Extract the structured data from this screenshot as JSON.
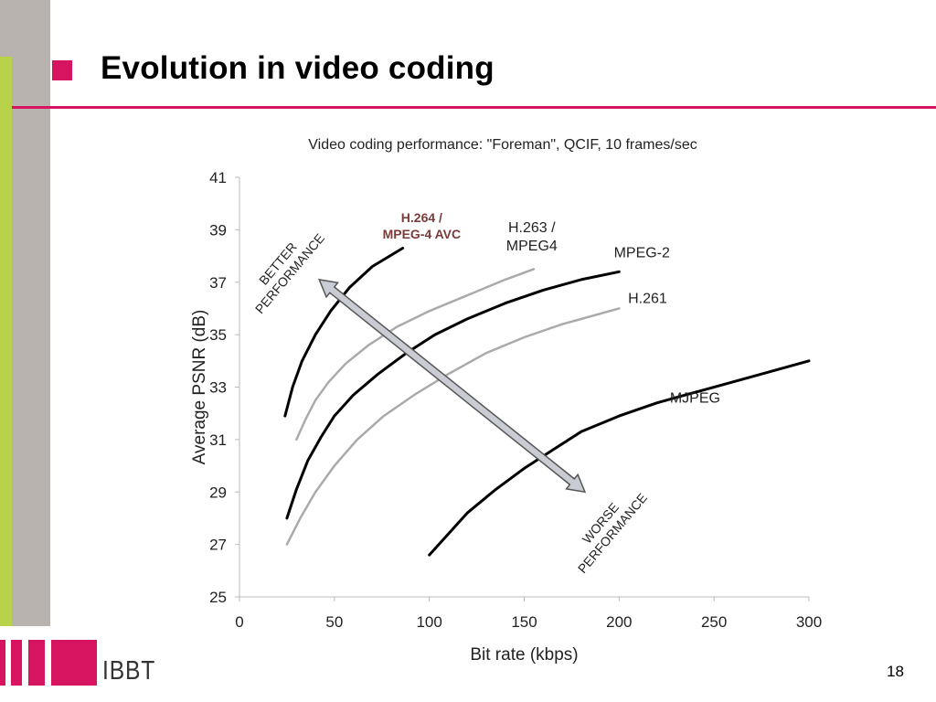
{
  "slide": {
    "title": "Evolution in video coding",
    "page_number": "18",
    "logo_text": "IBBT",
    "accent_color": "#d6145f",
    "sidebar_gray": "#b9b3b0",
    "sidebar_green": "#b8d34a"
  },
  "chart_data": {
    "type": "line",
    "title": "Video coding performance: \"Foreman\", QCIF, 10 frames/sec",
    "xlabel": "Bit rate (kbps)",
    "ylabel": "Average PSNR (dB)",
    "xlim": [
      0,
      300
    ],
    "ylim": [
      25,
      41
    ],
    "xticks": [
      0,
      50,
      100,
      150,
      200,
      250,
      300
    ],
    "yticks": [
      25,
      27,
      29,
      31,
      33,
      35,
      37,
      39,
      41
    ],
    "grid": false,
    "series": [
      {
        "name": "H.264 / MPEG-4 AVC",
        "label": [
          "H.264 /",
          "MPEG-4 AVC"
        ],
        "color": "#000000",
        "x": [
          24,
          28,
          33,
          40,
          48,
          58,
          70,
          86
        ],
        "y": [
          31.9,
          33.0,
          34.0,
          35.0,
          35.9,
          36.8,
          37.6,
          38.3
        ]
      },
      {
        "name": "H.263 / MPEG4",
        "label": [
          "H.263 /",
          "MPEG4"
        ],
        "color": "#aaaaaa",
        "x": [
          30,
          35,
          40,
          47,
          56,
          68,
          83,
          100,
          120,
          140,
          155
        ],
        "y": [
          31.0,
          31.8,
          32.5,
          33.2,
          33.9,
          34.6,
          35.3,
          35.9,
          36.5,
          37.1,
          37.5
        ]
      },
      {
        "name": "MPEG-2",
        "label": [
          "MPEG-2"
        ],
        "color": "#000000",
        "x": [
          25,
          30,
          36,
          43,
          50,
          60,
          73,
          88,
          103,
          120,
          140,
          160,
          180,
          200
        ],
        "y": [
          28.0,
          29.1,
          30.2,
          31.1,
          31.9,
          32.7,
          33.5,
          34.3,
          35.0,
          35.6,
          36.2,
          36.7,
          37.1,
          37.4
        ]
      },
      {
        "name": "H.261",
        "label": [
          "H.261"
        ],
        "color": "#aaaaaa",
        "x": [
          25,
          32,
          40,
          50,
          62,
          76,
          92,
          110,
          130,
          150,
          170,
          190,
          200
        ],
        "y": [
          27.0,
          28.0,
          29.0,
          30.0,
          31.0,
          31.9,
          32.7,
          33.5,
          34.3,
          34.9,
          35.4,
          35.8,
          36.0
        ]
      },
      {
        "name": "MJPEG",
        "label": [
          "MJPEG"
        ],
        "color": "#000000",
        "x": [
          100,
          110,
          120,
          135,
          150,
          165,
          180,
          200,
          220,
          240,
          260,
          280,
          300
        ],
        "y": [
          26.6,
          27.4,
          28.2,
          29.1,
          29.9,
          30.6,
          31.3,
          31.9,
          32.4,
          32.8,
          33.2,
          33.6,
          34.0
        ]
      }
    ],
    "annotations": {
      "arrow_from": {
        "x": 42,
        "y": 37.1
      },
      "arrow_to": {
        "x": 182,
        "y": 29.0
      },
      "better_label": [
        "BETTER",
        "PERFORMANCE"
      ],
      "worse_label": [
        "WORSE",
        "PERFORMANCE"
      ]
    }
  }
}
